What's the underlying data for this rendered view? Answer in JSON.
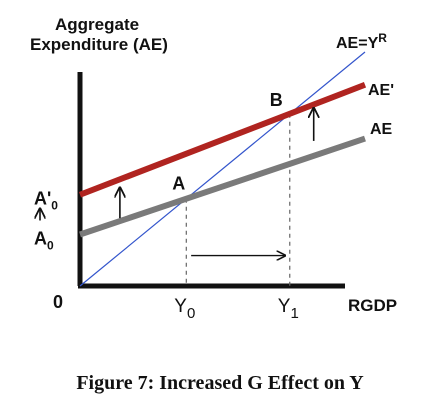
{
  "chart_data": {
    "type": "line",
    "ylabel_line1": "Aggregate",
    "ylabel_line2": "Expenditure (AE)",
    "xlabel": "RGDP",
    "origin_label": "0",
    "xlim": [
      0,
      10
    ],
    "ylim": [
      0,
      10
    ],
    "series": [
      {
        "name": "AE=Y",
        "name_sup": "R",
        "points": [
          [
            0,
            0
          ],
          [
            10,
            10
          ]
        ],
        "color": "#3355cc",
        "width": 1.2
      },
      {
        "name": "AE",
        "points": [
          [
            0,
            2.2
          ],
          [
            10,
            6.3
          ]
        ],
        "color": "#7a7a7a",
        "width": 6
      },
      {
        "name": "AE'",
        "points": [
          [
            0,
            3.9
          ],
          [
            10,
            8.6
          ]
        ],
        "color": "#b02420",
        "width": 6
      }
    ],
    "points": [
      {
        "label": "A",
        "x": 3.73,
        "y": 3.73
      },
      {
        "label": "B",
        "x": 7.36,
        "y": 7.36
      }
    ],
    "x_ticks": [
      {
        "base": "Y",
        "sub": "0",
        "x": 3.73
      },
      {
        "base": "Y",
        "sub": "1",
        "x": 7.36
      }
    ],
    "y_ticks": [
      {
        "base": "A",
        "sub": "0",
        "y": 2.2
      },
      {
        "base": "A'",
        "sub": "0",
        "y": 3.9
      }
    ],
    "annotations": {
      "up_arrows": [
        {
          "x": 1.4,
          "y_from": 2.9,
          "y_to": 4.2
        },
        {
          "x": 8.2,
          "y_from": 6.2,
          "y_to": 7.6
        }
      ],
      "y_axis_arrow": {
        "y_from": 2.8,
        "y_to": 3.3
      },
      "right_arrow": {
        "y": 1.3,
        "x_from": 3.9,
        "x_to": 7.2
      }
    }
  },
  "caption": "Figure 7: Increased G Effect on Y",
  "colors": {
    "axis": "#111111",
    "ae45": "#3355cc",
    "ae": "#7a7a7a",
    "ae_prime": "#b02420"
  }
}
